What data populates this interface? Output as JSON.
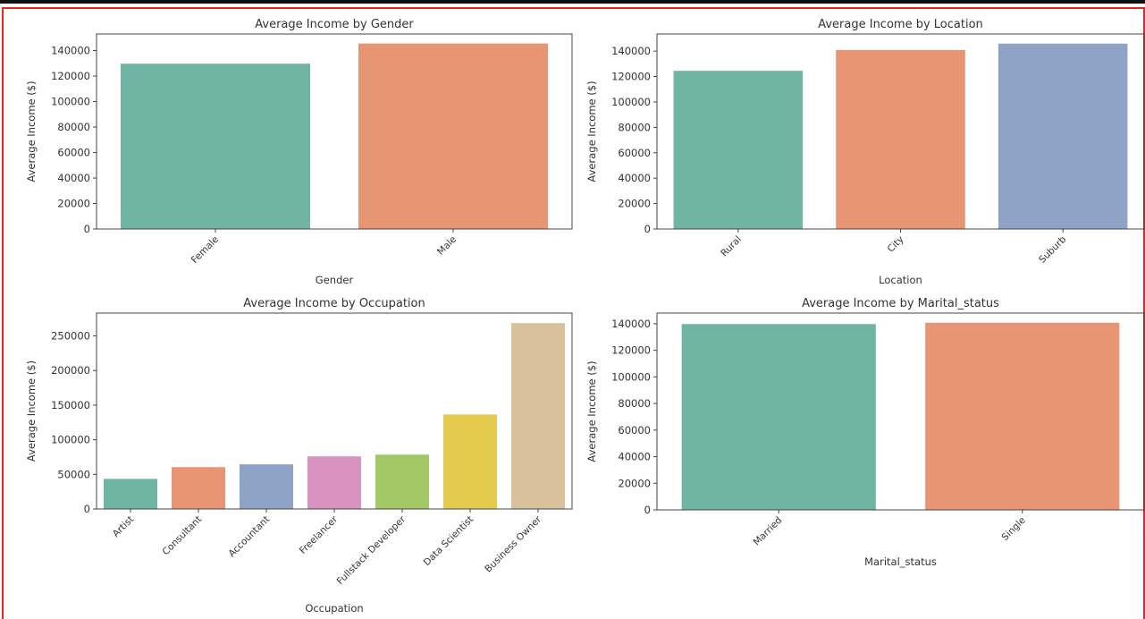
{
  "chart_data": [
    {
      "type": "bar",
      "title": "Average Income by Gender",
      "xlabel": "Gender",
      "ylabel": "Average Income ($)",
      "categories": [
        "Female",
        "Male"
      ],
      "values": [
        130000,
        145800
      ],
      "colors": [
        "#6fb5a2",
        "#e89574"
      ],
      "yticks": [
        0,
        20000,
        40000,
        60000,
        80000,
        100000,
        120000,
        140000
      ],
      "ylim": [
        0,
        153000
      ],
      "grid": false
    },
    {
      "type": "bar",
      "title": "Average Income by Location",
      "xlabel": "Location",
      "ylabel": "Average Income ($)",
      "categories": [
        "Rural",
        "City",
        "Suburb"
      ],
      "values": [
        124800,
        141200,
        146200
      ],
      "colors": [
        "#6fb5a2",
        "#e89574",
        "#8fa3c6"
      ],
      "yticks": [
        0,
        20000,
        40000,
        60000,
        80000,
        100000,
        120000,
        140000
      ],
      "ylim": [
        0,
        153500
      ],
      "grid": false
    },
    {
      "type": "bar",
      "title": "Average Income by Occupation",
      "xlabel": "Occupation",
      "ylabel": "Average Income ($)",
      "categories": [
        "Artist",
        "Consultant",
        "Accountant",
        "Freelancer",
        "Fullstack Developer",
        "Data Scientist",
        "Business Owner"
      ],
      "values": [
        44000,
        61000,
        65000,
        76500,
        79000,
        137000,
        269000
      ],
      "colors": [
        "#6fb5a2",
        "#e89574",
        "#8fa3c6",
        "#d893c0",
        "#a2c765",
        "#e3c94c",
        "#d8c09a"
      ],
      "yticks": [
        0,
        50000,
        100000,
        150000,
        200000,
        250000
      ],
      "ylim": [
        0,
        283000
      ],
      "grid": false
    },
    {
      "type": "bar",
      "title": "Average Income by Marital_status",
      "xlabel": "Marital_status",
      "ylabel": "Average Income ($)",
      "categories": [
        "Married",
        "Single"
      ],
      "values": [
        140000,
        141000
      ],
      "colors": [
        "#6fb5a2",
        "#e89574"
      ],
      "yticks": [
        0,
        20000,
        40000,
        60000,
        80000,
        100000,
        120000,
        140000
      ],
      "ylim": [
        0,
        148000
      ],
      "grid": false
    }
  ]
}
